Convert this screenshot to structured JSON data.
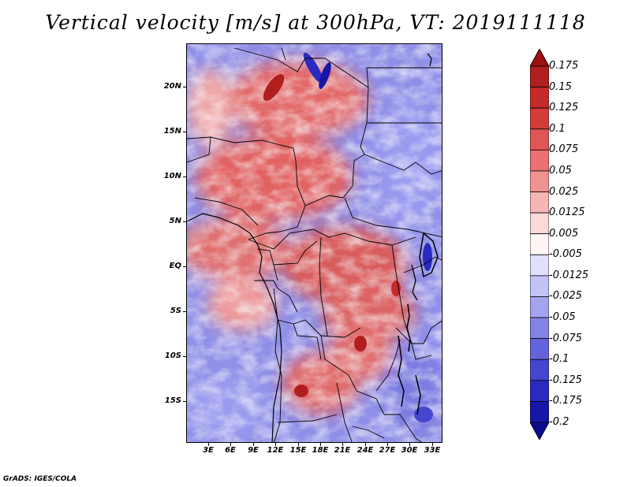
{
  "title": "Vertical velocity [m/s] at 300hPa, VT: 2019111118",
  "credit": "GrADS: IGES/COLA",
  "map": {
    "field": "Vertical velocity",
    "units": "m/s",
    "level": "300hPa",
    "valid_time": "2019111118",
    "lat_labels": [
      "20N",
      "15N",
      "10N",
      "5N",
      "EQ",
      "5S",
      "10S",
      "15S"
    ],
    "lon_labels": [
      "3E",
      "6E",
      "9E",
      "12E",
      "15E",
      "18E",
      "21E",
      "24E",
      "27E",
      "30E",
      "33E"
    ]
  },
  "colorbar": {
    "labels": [
      "0.175",
      "0.15",
      "0.125",
      "0.1",
      "0.075",
      "0.05",
      "0.025",
      "0.0125",
      "0.005",
      "-0.005",
      "-0.0125",
      "-0.025",
      "-0.05",
      "-0.075",
      "-0.1",
      "-0.125",
      "-0.175",
      "-0.2"
    ],
    "colors": [
      "#9e0f0f",
      "#b01e1e",
      "#c42a2a",
      "#d43b3b",
      "#e05555",
      "#e87272",
      "#f09393",
      "#f6b6b6",
      "#fad9d9",
      "#fff5f5",
      "#e0e0fb",
      "#c3c3f5",
      "#a3a3ee",
      "#8383e6",
      "#6363dc",
      "#4545cf",
      "#2a2ac0",
      "#1616a8",
      "#0c0c90"
    ]
  }
}
